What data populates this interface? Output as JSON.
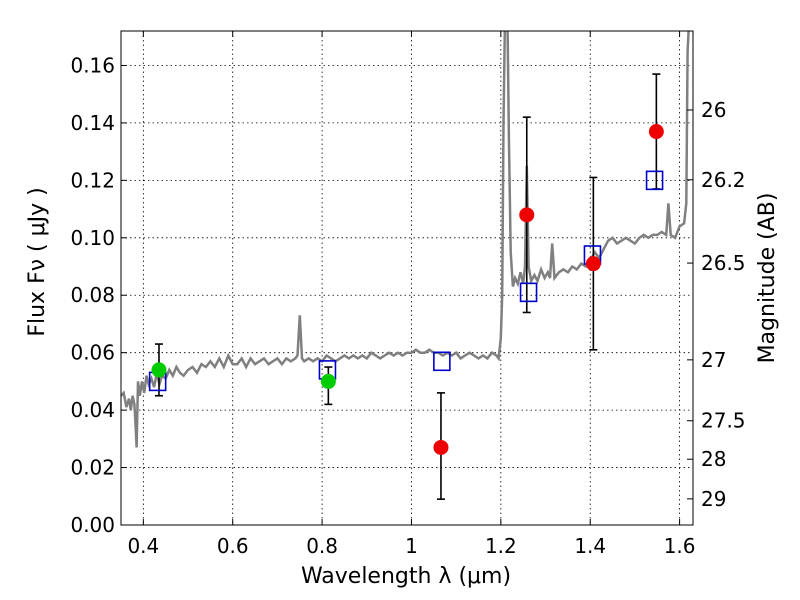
{
  "chart_data": {
    "type": "scatter",
    "xlabel": "Wavelength  λ (μm)",
    "ylabel": "Flux  Fν  ( μJy )",
    "ylabel_right": "Magnitude (AB)",
    "xlim": [
      0.35,
      1.63
    ],
    "ylim": [
      0.0,
      0.172
    ],
    "grid": true,
    "x_ticks": [
      {
        "v": 0.4,
        "label": "0.4"
      },
      {
        "v": 0.6,
        "label": "0.6"
      },
      {
        "v": 0.8,
        "label": "0.8"
      },
      {
        "v": 1.0,
        "label": "1"
      },
      {
        "v": 1.2,
        "label": "1.2"
      },
      {
        "v": 1.4,
        "label": "1.4"
      },
      {
        "v": 1.6,
        "label": "1.6"
      }
    ],
    "y_ticks": [
      {
        "v": 0.0,
        "label": "0.00"
      },
      {
        "v": 0.02,
        "label": "0.02"
      },
      {
        "v": 0.04,
        "label": "0.04"
      },
      {
        "v": 0.06,
        "label": "0.06"
      },
      {
        "v": 0.08,
        "label": "0.08"
      },
      {
        "v": 0.1,
        "label": "0.10"
      },
      {
        "v": 0.12,
        "label": "0.12"
      },
      {
        "v": 0.14,
        "label": "0.14"
      },
      {
        "v": 0.16,
        "label": "0.16"
      }
    ],
    "mag_ticks": [
      {
        "flux": 0.1445,
        "label": "26"
      },
      {
        "flux": 0.1202,
        "label": "26.2"
      },
      {
        "flux": 0.0912,
        "label": "26.5"
      },
      {
        "flux": 0.0575,
        "label": "27"
      },
      {
        "flux": 0.0363,
        "label": "27.5"
      },
      {
        "flux": 0.0229,
        "label": "28"
      },
      {
        "flux": 0.0091,
        "label": "29"
      }
    ],
    "colors": {
      "spectrum": "#808080",
      "green": "#00cc00",
      "red": "#ee0000",
      "model": "#0000cc"
    },
    "spectrum": [
      [
        0.35,
        0.045
      ],
      [
        0.356,
        0.046
      ],
      [
        0.362,
        0.041
      ],
      [
        0.368,
        0.044
      ],
      [
        0.372,
        0.04
      ],
      [
        0.376,
        0.045
      ],
      [
        0.38,
        0.042
      ],
      [
        0.383,
        0.034
      ],
      [
        0.385,
        0.027
      ],
      [
        0.388,
        0.05
      ],
      [
        0.392,
        0.045
      ],
      [
        0.397,
        0.05
      ],
      [
        0.402,
        0.046
      ],
      [
        0.407,
        0.052
      ],
      [
        0.412,
        0.049
      ],
      [
        0.418,
        0.051
      ],
      [
        0.424,
        0.048
      ],
      [
        0.43,
        0.053
      ],
      [
        0.436,
        0.049
      ],
      [
        0.442,
        0.052
      ],
      [
        0.45,
        0.051
      ],
      [
        0.458,
        0.054
      ],
      [
        0.466,
        0.052
      ],
      [
        0.474,
        0.055
      ],
      [
        0.482,
        0.053
      ],
      [
        0.49,
        0.052
      ],
      [
        0.5,
        0.054
      ],
      [
        0.51,
        0.055
      ],
      [
        0.52,
        0.053
      ],
      [
        0.53,
        0.056
      ],
      [
        0.54,
        0.055
      ],
      [
        0.55,
        0.057
      ],
      [
        0.56,
        0.055
      ],
      [
        0.57,
        0.058
      ],
      [
        0.58,
        0.055
      ],
      [
        0.59,
        0.059
      ],
      [
        0.6,
        0.056
      ],
      [
        0.61,
        0.056
      ],
      [
        0.62,
        0.058
      ],
      [
        0.63,
        0.055
      ],
      [
        0.64,
        0.058
      ],
      [
        0.65,
        0.056
      ],
      [
        0.66,
        0.057
      ],
      [
        0.67,
        0.058
      ],
      [
        0.68,
        0.056
      ],
      [
        0.69,
        0.057
      ],
      [
        0.7,
        0.058
      ],
      [
        0.71,
        0.056
      ],
      [
        0.72,
        0.058
      ],
      [
        0.73,
        0.057
      ],
      [
        0.74,
        0.058
      ],
      [
        0.745,
        0.059
      ],
      [
        0.75,
        0.073
      ],
      [
        0.755,
        0.058
      ],
      [
        0.76,
        0.057
      ],
      [
        0.77,
        0.058
      ],
      [
        0.78,
        0.057
      ],
      [
        0.79,
        0.058
      ],
      [
        0.8,
        0.057
      ],
      [
        0.81,
        0.059
      ],
      [
        0.82,
        0.058
      ],
      [
        0.83,
        0.057
      ],
      [
        0.84,
        0.058
      ],
      [
        0.85,
        0.059
      ],
      [
        0.86,
        0.058
      ],
      [
        0.87,
        0.059
      ],
      [
        0.88,
        0.058
      ],
      [
        0.89,
        0.059
      ],
      [
        0.9,
        0.058
      ],
      [
        0.91,
        0.06
      ],
      [
        0.92,
        0.059
      ],
      [
        0.93,
        0.058
      ],
      [
        0.94,
        0.059
      ],
      [
        0.95,
        0.06
      ],
      [
        0.96,
        0.059
      ],
      [
        0.97,
        0.06
      ],
      [
        0.98,
        0.059
      ],
      [
        0.99,
        0.06
      ],
      [
        1.0,
        0.06
      ],
      [
        1.01,
        0.061
      ],
      [
        1.02,
        0.06
      ],
      [
        1.03,
        0.06
      ],
      [
        1.04,
        0.061
      ],
      [
        1.05,
        0.06
      ],
      [
        1.06,
        0.06
      ],
      [
        1.07,
        0.059
      ],
      [
        1.08,
        0.06
      ],
      [
        1.09,
        0.059
      ],
      [
        1.1,
        0.06
      ],
      [
        1.11,
        0.058
      ],
      [
        1.12,
        0.059
      ],
      [
        1.13,
        0.06
      ],
      [
        1.14,
        0.059
      ],
      [
        1.15,
        0.058
      ],
      [
        1.16,
        0.059
      ],
      [
        1.17,
        0.058
      ],
      [
        1.18,
        0.06
      ],
      [
        1.19,
        0.059
      ],
      [
        1.195,
        0.058
      ],
      [
        1.2,
        0.065
      ],
      [
        1.203,
        0.08
      ],
      [
        1.206,
        0.14
      ],
      [
        1.209,
        0.175
      ],
      [
        1.215,
        0.175
      ],
      [
        1.218,
        0.135
      ],
      [
        1.222,
        0.095
      ],
      [
        1.227,
        0.083
      ],
      [
        1.232,
        0.086
      ],
      [
        1.238,
        0.084
      ],
      [
        1.244,
        0.088
      ],
      [
        1.25,
        0.084
      ],
      [
        1.254,
        0.09
      ],
      [
        1.258,
        0.125
      ],
      [
        1.262,
        0.09
      ],
      [
        1.268,
        0.085
      ],
      [
        1.275,
        0.087
      ],
      [
        1.282,
        0.085
      ],
      [
        1.29,
        0.089
      ],
      [
        1.298,
        0.086
      ],
      [
        1.305,
        0.088
      ],
      [
        1.31,
        0.086
      ],
      [
        1.315,
        0.098
      ],
      [
        1.32,
        0.086
      ],
      [
        1.33,
        0.088
      ],
      [
        1.34,
        0.089
      ],
      [
        1.35,
        0.088
      ],
      [
        1.36,
        0.09
      ],
      [
        1.37,
        0.089
      ],
      [
        1.38,
        0.091
      ],
      [
        1.39,
        0.09
      ],
      [
        1.4,
        0.092
      ],
      [
        1.41,
        0.095
      ],
      [
        1.42,
        0.093
      ],
      [
        1.43,
        0.096
      ],
      [
        1.44,
        0.099
      ],
      [
        1.45,
        0.1
      ],
      [
        1.46,
        0.098
      ],
      [
        1.47,
        0.099
      ],
      [
        1.48,
        0.1
      ],
      [
        1.49,
        0.099
      ],
      [
        1.5,
        0.098
      ],
      [
        1.51,
        0.1
      ],
      [
        1.52,
        0.101
      ],
      [
        1.53,
        0.1
      ],
      [
        1.54,
        0.101
      ],
      [
        1.55,
        0.101
      ],
      [
        1.56,
        0.102
      ],
      [
        1.57,
        0.101
      ],
      [
        1.575,
        0.112
      ],
      [
        1.58,
        0.101
      ],
      [
        1.59,
        0.1
      ],
      [
        1.6,
        0.104
      ],
      [
        1.61,
        0.105
      ],
      [
        1.615,
        0.112
      ],
      [
        1.618,
        0.165
      ],
      [
        1.621,
        0.175
      ]
    ],
    "photometry_green": [
      {
        "x": 0.435,
        "y": 0.054,
        "yerr_lo": 0.045,
        "yerr_hi": 0.063
      },
      {
        "x": 0.814,
        "y": 0.05,
        "yerr_lo": 0.042,
        "yerr_hi": 0.055
      }
    ],
    "photometry_red": [
      {
        "x": 1.066,
        "y": 0.027,
        "yerr_lo": 0.009,
        "yerr_hi": 0.046
      },
      {
        "x": 1.258,
        "y": 0.108,
        "yerr_lo": 0.074,
        "yerr_hi": 0.142
      },
      {
        "x": 1.407,
        "y": 0.091,
        "yerr_lo": 0.061,
        "yerr_hi": 0.121
      },
      {
        "x": 1.548,
        "y": 0.137,
        "yerr_lo": 0.117,
        "yerr_hi": 0.157
      }
    ],
    "model_photometry": [
      {
        "x": 0.432,
        "y": 0.05
      },
      {
        "x": 0.812,
        "y": 0.054
      },
      {
        "x": 1.068,
        "y": 0.057
      },
      {
        "x": 1.262,
        "y": 0.081
      },
      {
        "x": 1.405,
        "y": 0.094
      },
      {
        "x": 1.544,
        "y": 0.12
      }
    ]
  }
}
